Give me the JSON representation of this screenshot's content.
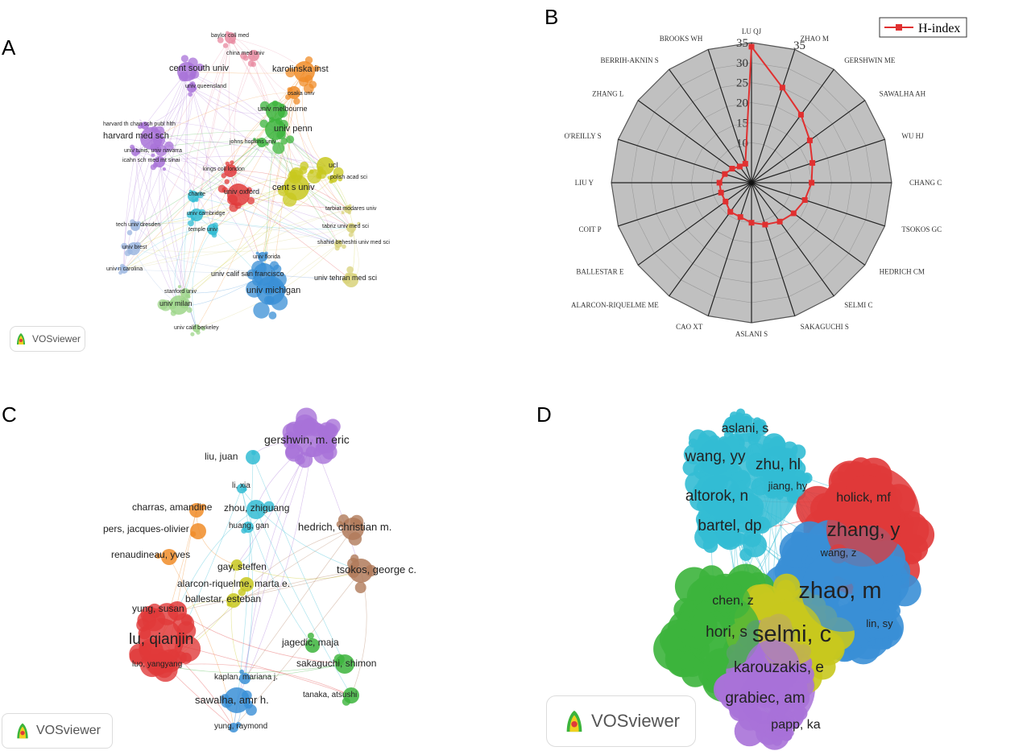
{
  "panels": {
    "a": "A",
    "b": "B",
    "c": "C",
    "d": "D"
  },
  "branding": {
    "vosviewer": "VOSviewer"
  },
  "colors": {
    "red": "#e03a3a",
    "green": "#3cb43c",
    "blue": "#3a8fd6",
    "yellow": "#c8c81e",
    "purple": "#a872d8",
    "cyan": "#33bcd4",
    "orange": "#f08c28",
    "brown": "#b07a5a",
    "pink": "#e88aa0",
    "lightblue": "#9bb6e0",
    "lightgreen": "#9ed68a",
    "khaki": "#d8d27a",
    "radar_fill": "#c0c0c0",
    "radar_line": "#e03030"
  },
  "chart_data": [
    {
      "type": "network",
      "panel": "A",
      "nodes": [
        {
          "label": "baylor coll med",
          "size": "xs",
          "color": "pink"
        },
        {
          "label": "china med univ",
          "size": "xs",
          "color": "pink"
        },
        {
          "label": "karolinska inst",
          "size": "m",
          "color": "orange"
        },
        {
          "label": "cent south univ",
          "size": "m",
          "color": "purple"
        },
        {
          "label": "univ queensland",
          "size": "xs",
          "color": "purple"
        },
        {
          "label": "osaka univ",
          "size": "xs",
          "color": "orange"
        },
        {
          "label": "univ melbourne",
          "size": "s",
          "color": "green"
        },
        {
          "label": "univ penn",
          "size": "m",
          "color": "green"
        },
        {
          "label": "harvard th chan sch publ hlth",
          "size": "xs",
          "color": "purple"
        },
        {
          "label": "harvard med sch",
          "size": "m",
          "color": "purple"
        },
        {
          "label": "johns hopkins univ",
          "size": "xs",
          "color": "green"
        },
        {
          "label": "univ tunis, univ navarra",
          "size": "xs",
          "color": "purple"
        },
        {
          "label": "icahn sch med mt sinai",
          "size": "xs",
          "color": "purple"
        },
        {
          "label": "ucl",
          "size": "s",
          "color": "yellow"
        },
        {
          "label": "polish acad sci",
          "size": "xs",
          "color": "yellow"
        },
        {
          "label": "kings coll london",
          "size": "xs",
          "color": "red"
        },
        {
          "label": "univ oxford",
          "size": "s",
          "color": "red"
        },
        {
          "label": "charite",
          "size": "xs",
          "color": "cyan"
        },
        {
          "label": "cent s univ",
          "size": "m",
          "color": "yellow"
        },
        {
          "label": "univ cambridge",
          "size": "xs",
          "color": "cyan"
        },
        {
          "label": "tarbiat modares univ",
          "size": "xs",
          "color": "khaki"
        },
        {
          "label": "tabriz univ med sci",
          "size": "xs",
          "color": "khaki"
        },
        {
          "label": "temple univ",
          "size": "xs",
          "color": "cyan"
        },
        {
          "label": "tech univ dresden",
          "size": "xs",
          "color": "lightblue"
        },
        {
          "label": "shahid beheshti univ med sci",
          "size": "xs",
          "color": "khaki"
        },
        {
          "label": "univ brest",
          "size": "xs",
          "color": "lightblue"
        },
        {
          "label": "univ florida",
          "size": "xs",
          "color": "blue"
        },
        {
          "label": "univ n carolina",
          "size": "xs",
          "color": "lightblue"
        },
        {
          "label": "univ calif san francisco",
          "size": "s",
          "color": "blue"
        },
        {
          "label": "univ tehran med sci",
          "size": "s",
          "color": "khaki"
        },
        {
          "label": "univ michigan",
          "size": "m",
          "color": "blue"
        },
        {
          "label": "stanford univ",
          "size": "xs",
          "color": "lightgreen"
        },
        {
          "label": "univ milan",
          "size": "s",
          "color": "lightgreen"
        },
        {
          "label": "univ calif berkeley",
          "size": "xs",
          "color": "lightgreen"
        }
      ]
    },
    {
      "type": "radar",
      "panel": "B",
      "legend": "H-index",
      "legend_position": "top-right",
      "radial_ticks": [
        10,
        15,
        20,
        25,
        30,
        35
      ],
      "rmax": 35,
      "axes": [
        "LU QJ",
        "ZHAO M",
        "GERSHWIN ME",
        "SAWALHA AH",
        "WU HJ",
        "CHANG C",
        "TSOKOS GC",
        "HEDRICH CM",
        "SELMI C",
        "SAKAGUCHI S",
        "ASLANI S",
        "CAO XT",
        "ALARCON-RIQUELME ME",
        "BALLESTAR E",
        "COIT P",
        "LIU Y",
        "O'REILLY S",
        "ZHANG L",
        "BERRIH-AKNIN S",
        "BROOKS WH"
      ],
      "values": [
        34,
        25,
        21,
        18,
        16,
        15,
        14,
        13,
        12,
        11,
        10,
        9,
        9,
        8,
        8,
        8,
        7,
        6,
        5,
        5
      ]
    },
    {
      "type": "network",
      "panel": "C",
      "nodes": [
        {
          "label": "gershwin, m. eric",
          "size": "l",
          "color": "purple"
        },
        {
          "label": "liu, juan",
          "size": "s",
          "color": "cyan"
        },
        {
          "label": "li, xia",
          "size": "xs",
          "color": "cyan"
        },
        {
          "label": "charras, amandine",
          "size": "s",
          "color": "orange"
        },
        {
          "label": "zhou, zhiguang",
          "size": "s",
          "color": "cyan"
        },
        {
          "label": "pers, jacques-olivier",
          "size": "s",
          "color": "orange"
        },
        {
          "label": "huang, gan",
          "size": "xs",
          "color": "cyan"
        },
        {
          "label": "hedrich, christian m.",
          "size": "m",
          "color": "brown"
        },
        {
          "label": "renaudineau, yves",
          "size": "s",
          "color": "orange"
        },
        {
          "label": "gay, steffen",
          "size": "s",
          "color": "yellow"
        },
        {
          "label": "tsokos, george c.",
          "size": "m",
          "color": "brown"
        },
        {
          "label": "alarcon-riquelme, marta e.",
          "size": "s",
          "color": "yellow"
        },
        {
          "label": "ballestar, esteban",
          "size": "s",
          "color": "yellow"
        },
        {
          "label": "yung, susan",
          "size": "s",
          "color": "red"
        },
        {
          "label": "lu, qianjin",
          "size": "xl",
          "color": "red"
        },
        {
          "label": "jagedic, maja",
          "size": "s",
          "color": "green"
        },
        {
          "label": "sakaguchi, shimon",
          "size": "s",
          "color": "green"
        },
        {
          "label": "luo, yangyang",
          "size": "xs",
          "color": "red"
        },
        {
          "label": "kaplan, mariana j.",
          "size": "xs",
          "color": "blue"
        },
        {
          "label": "tanaka, atsushi",
          "size": "xs",
          "color": "green"
        },
        {
          "label": "sawalha, amr h.",
          "size": "m",
          "color": "blue"
        },
        {
          "label": "yung, raymond",
          "size": "xs",
          "color": "blue"
        }
      ]
    },
    {
      "type": "network",
      "panel": "D",
      "nodes": [
        {
          "label": "aslani, s",
          "size": "m",
          "color": "cyan"
        },
        {
          "label": "wang, yy",
          "size": "l",
          "color": "cyan"
        },
        {
          "label": "zhu, hl",
          "size": "l",
          "color": "cyan"
        },
        {
          "label": "jiang, hy",
          "size": "s",
          "color": "cyan"
        },
        {
          "label": "holick, mf",
          "size": "m",
          "color": "red"
        },
        {
          "label": "altorok, n",
          "size": "l",
          "color": "cyan"
        },
        {
          "label": "bartel, dp",
          "size": "l",
          "color": "cyan"
        },
        {
          "label": "zhang, y",
          "size": "xl",
          "color": "red"
        },
        {
          "label": "wang, z",
          "size": "s",
          "color": "red"
        },
        {
          "label": "zhao, m",
          "size": "xxl",
          "color": "blue"
        },
        {
          "label": "chen, z",
          "size": "m",
          "color": "green"
        },
        {
          "label": "hori, s",
          "size": "l",
          "color": "green"
        },
        {
          "label": "selmi, c",
          "size": "xxl",
          "color": "yellow"
        },
        {
          "label": "lin, sy",
          "size": "s",
          "color": "blue"
        },
        {
          "label": "karouzakis, e",
          "size": "l",
          "color": "purple"
        },
        {
          "label": "grabiec, am",
          "size": "l",
          "color": "purple"
        },
        {
          "label": "papp, ka",
          "size": "m",
          "color": "purple"
        }
      ]
    }
  ]
}
